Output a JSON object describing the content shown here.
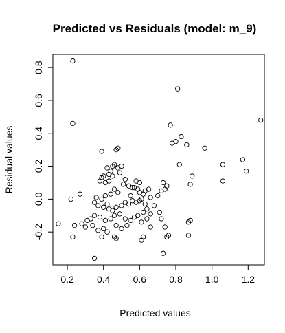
{
  "chart_data": {
    "type": "scatter",
    "title": "Predicted vs Residuals (model: m_9)",
    "xlabel": "Predicted values",
    "ylabel": "Residual values",
    "xlim": [
      0.12,
      1.29
    ],
    "ylim": [
      -0.4,
      0.88
    ],
    "x_ticks": [
      "0.2",
      "0.4",
      "0.6",
      "0.8",
      "1.0",
      "1.2"
    ],
    "y_ticks": [
      "-0.2",
      "0.0",
      "0.2",
      "0.4",
      "0.6",
      "0.8"
    ],
    "x_tick_values": [
      0.2,
      0.4,
      0.6,
      0.8,
      1.0,
      1.2
    ],
    "y_tick_values": [
      -0.2,
      0.0,
      0.2,
      0.4,
      0.6,
      0.8
    ],
    "grid": false,
    "points": [
      [
        0.23,
        0.84
      ],
      [
        0.23,
        0.46
      ],
      [
        0.81,
        0.67
      ],
      [
        1.27,
        0.48
      ],
      [
        0.77,
        0.45
      ],
      [
        0.83,
        0.38
      ],
      [
        0.8,
        0.35
      ],
      [
        0.78,
        0.34
      ],
      [
        0.86,
        0.33
      ],
      [
        0.96,
        0.31
      ],
      [
        0.48,
        0.31
      ],
      [
        0.47,
        0.3
      ],
      [
        0.39,
        0.29
      ],
      [
        1.17,
        0.24
      ],
      [
        1.06,
        0.21
      ],
      [
        0.82,
        0.21
      ],
      [
        1.19,
        0.17
      ],
      [
        0.89,
        0.14
      ],
      [
        0.88,
        0.09
      ],
      [
        1.06,
        0.11
      ],
      [
        0.42,
        0.19
      ],
      [
        0.45,
        0.2
      ],
      [
        0.46,
        0.21
      ],
      [
        0.48,
        0.19
      ],
      [
        0.5,
        0.2
      ],
      [
        0.44,
        0.17
      ],
      [
        0.49,
        0.16
      ],
      [
        0.43,
        0.15
      ],
      [
        0.4,
        0.14
      ],
      [
        0.39,
        0.13
      ],
      [
        0.38,
        0.11
      ],
      [
        0.41,
        0.1
      ],
      [
        0.52,
        0.12
      ],
      [
        0.51,
        0.09
      ],
      [
        0.54,
        0.08
      ],
      [
        0.58,
        0.11
      ],
      [
        0.6,
        0.1
      ],
      [
        0.57,
        0.07
      ],
      [
        0.59,
        0.06
      ],
      [
        0.63,
        0.05
      ],
      [
        0.65,
        0.06
      ],
      [
        0.62,
        0.03
      ],
      [
        0.55,
        0.02
      ],
      [
        0.48,
        0.04
      ],
      [
        0.46,
        0.06
      ],
      [
        0.44,
        0.03
      ],
      [
        0.41,
        0.02
      ],
      [
        0.39,
        0.0
      ],
      [
        0.36,
        0.01
      ],
      [
        0.35,
        -0.02
      ],
      [
        0.37,
        -0.04
      ],
      [
        0.4,
        -0.05
      ],
      [
        0.42,
        -0.03
      ],
      [
        0.43,
        -0.06
      ],
      [
        0.45,
        -0.07
      ],
      [
        0.47,
        -0.05
      ],
      [
        0.5,
        -0.04
      ],
      [
        0.52,
        -0.02
      ],
      [
        0.54,
        -0.03
      ],
      [
        0.56,
        -0.01
      ],
      [
        0.58,
        -0.02
      ],
      [
        0.6,
        -0.01
      ],
      [
        0.61,
        0.0
      ],
      [
        0.63,
        -0.03
      ],
      [
        0.66,
        0.01
      ],
      [
        0.64,
        -0.06
      ],
      [
        0.62,
        -0.08
      ],
      [
        0.59,
        -0.1
      ],
      [
        0.57,
        -0.11
      ],
      [
        0.55,
        -0.13
      ],
      [
        0.52,
        -0.12
      ],
      [
        0.49,
        -0.09
      ],
      [
        0.46,
        -0.1
      ],
      [
        0.44,
        -0.12
      ],
      [
        0.41,
        -0.13
      ],
      [
        0.38,
        -0.11
      ],
      [
        0.35,
        -0.1
      ],
      [
        0.33,
        -0.12
      ],
      [
        0.31,
        -0.13
      ],
      [
        0.3,
        -0.17
      ],
      [
        0.28,
        -0.15
      ],
      [
        0.24,
        -0.16
      ],
      [
        0.22,
        0.0
      ],
      [
        0.27,
        0.03
      ],
      [
        0.34,
        -0.16
      ],
      [
        0.37,
        -0.19
      ],
      [
        0.4,
        -0.18
      ],
      [
        0.42,
        -0.2
      ],
      [
        0.39,
        -0.23
      ],
      [
        0.47,
        -0.16
      ],
      [
        0.5,
        -0.18
      ],
      [
        0.53,
        -0.16
      ],
      [
        0.46,
        -0.23
      ],
      [
        0.47,
        -0.24
      ],
      [
        0.61,
        -0.14
      ],
      [
        0.62,
        -0.23
      ],
      [
        0.61,
        -0.25
      ],
      [
        0.66,
        -0.17
      ],
      [
        0.64,
        -0.12
      ],
      [
        0.72,
        -0.12
      ],
      [
        0.74,
        -0.17
      ],
      [
        0.76,
        -0.22
      ],
      [
        0.75,
        -0.23
      ],
      [
        0.73,
        -0.33
      ],
      [
        0.87,
        -0.14
      ],
      [
        0.88,
        -0.13
      ],
      [
        0.87,
        -0.22
      ],
      [
        0.15,
        -0.15
      ],
      [
        0.23,
        -0.23
      ],
      [
        0.35,
        -0.36
      ],
      [
        0.72,
        0.05
      ],
      [
        0.74,
        0.06
      ],
      [
        0.73,
        0.1
      ],
      [
        0.75,
        0.08
      ],
      [
        0.71,
        -0.08
      ],
      [
        0.68,
        -0.04
      ],
      [
        0.66,
        -0.09
      ],
      [
        0.56,
        0.07
      ],
      [
        0.45,
        0.14
      ],
      [
        0.43,
        0.11
      ],
      [
        0.6,
        0.04
      ],
      [
        0.7,
        0.02
      ]
    ]
  }
}
